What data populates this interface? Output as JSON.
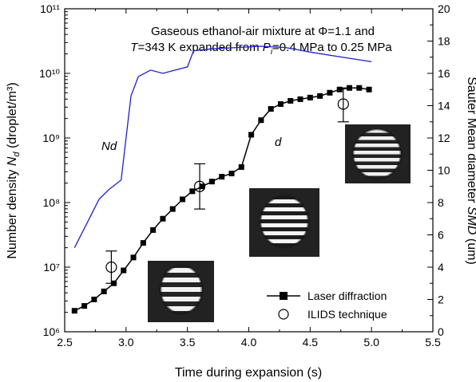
{
  "chart_data": {
    "type": "line",
    "title_lines": [
      "Gaseous ethanol-air mixture at Φ=1.1 and",
      "T=343 K expanded from Pi=0.4 MPa to 0.25 MPa"
    ],
    "xlabel": "Time during expansion (s)",
    "ylabel_left": "Number density Nd (droplet/m³)",
    "ylabel_right": "Sauter Mean diameter SMD (um)",
    "xlim": [
      2.5,
      5.5
    ],
    "xticks": [
      "2.5",
      "3.0",
      "3.5",
      "4.0",
      "4.5",
      "5.0",
      "5.5"
    ],
    "ylim_left_log10": [
      6,
      11
    ],
    "yticks_left": [
      "10⁶",
      "10⁷",
      "10⁸",
      "10⁹",
      "10¹⁰",
      "10¹¹"
    ],
    "ylim_right": [
      0,
      20
    ],
    "yticks_right": [
      "0",
      "2",
      "4",
      "6",
      "8",
      "10",
      "12",
      "14",
      "16",
      "18",
      "20"
    ],
    "series": [
      {
        "name": "Laser diffraction",
        "axis": "right",
        "color": "#000000",
        "marker": "square",
        "x": [
          2.58,
          2.66,
          2.74,
          2.82,
          2.9,
          2.98,
          3.06,
          3.14,
          3.22,
          3.3,
          3.38,
          3.46,
          3.54,
          3.62,
          3.7,
          3.78,
          3.86,
          3.94,
          4.02,
          4.1,
          4.18,
          4.26,
          4.34,
          4.42,
          4.5,
          4.58,
          4.66,
          4.74,
          4.82,
          4.9,
          4.98
        ],
        "y": [
          1.3,
          1.6,
          2.0,
          2.5,
          3.0,
          3.8,
          4.6,
          5.5,
          6.3,
          7.0,
          7.6,
          8.2,
          8.7,
          9.0,
          9.3,
          9.6,
          9.8,
          10.2,
          12.2,
          13.1,
          13.8,
          14.1,
          14.3,
          14.4,
          14.5,
          14.6,
          14.8,
          15.0,
          15.1,
          15.1,
          15.0
        ]
      },
      {
        "name": "ILIDS technique",
        "axis": "right",
        "color": "#000000",
        "marker": "circle",
        "x": [
          2.88,
          3.6,
          4.77
        ],
        "y": [
          4.0,
          9.0,
          14.1
        ],
        "err_low": [
          3.0,
          7.6,
          13.0
        ],
        "err_high": [
          5.0,
          10.4,
          15.1
        ]
      },
      {
        "axis": "left",
        "color": "#1f1fcc",
        "x": [
          2.58,
          2.7,
          2.78,
          2.86,
          2.96,
          3.04,
          3.1,
          3.2,
          3.3,
          3.4,
          3.5,
          3.55,
          3.7,
          3.9,
          4.1,
          4.3,
          4.5,
          4.8,
          5.0
        ],
        "y_log10": [
          7.3,
          7.75,
          8.05,
          8.2,
          8.35,
          9.65,
          9.95,
          10.05,
          10.0,
          10.05,
          10.1,
          10.35,
          10.38,
          10.4,
          10.42,
          10.4,
          10.33,
          10.24,
          10.18
        ]
      }
    ],
    "annotations": {
      "nd_label": "Nd",
      "nd_sub": "d",
      "d_label": "d"
    },
    "legend": {
      "placement": "bottom-right",
      "entries": [
        "Laser diffraction",
        "ILIDS technique"
      ]
    }
  }
}
